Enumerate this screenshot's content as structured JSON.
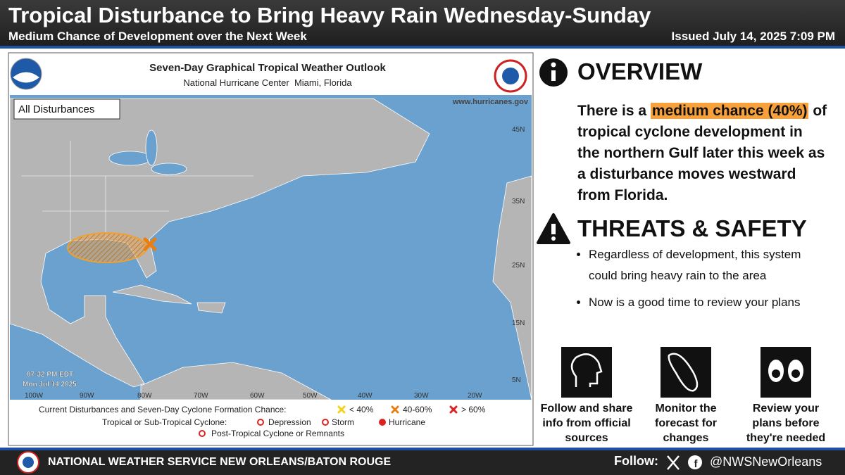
{
  "header": {
    "title": "Tropical Disturbance to Bring Heavy Rain Wednesday-Sunday",
    "subtitle": "Medium Chance of Development over the Next Week",
    "issued": "Issued July 14, 2025 7:09 PM"
  },
  "map": {
    "title": "Seven-Day Graphical Tropical Weather Outlook",
    "subtitle": "National Hurricane Center  Miami, Florida",
    "website": "www.hurricanes.gov",
    "filter": "All Disturbances",
    "timestamp": [
      "07:32 PM EDT",
      "Mon Jul 14 2025"
    ],
    "lat_labels": [
      "45N",
      "35N",
      "25N",
      "15N",
      "5N"
    ],
    "lon_labels": [
      "100W",
      "90W",
      "80W",
      "70W",
      "60W",
      "50W",
      "40W",
      "30W",
      "20W"
    ],
    "legend": {
      "formation_label": "Current Disturbances and Seven-Day Cyclone Formation Chance:",
      "formation": [
        "< 40%",
        "40-60%",
        "> 60%"
      ],
      "cyclone_label": "Tropical or Sub-Tropical Cyclone:",
      "cyclone": [
        "Depression",
        "Storm",
        "Hurricane"
      ],
      "post": "Post-Tropical Cyclone or Remnants"
    }
  },
  "overview": {
    "heading": "OVERVIEW",
    "before": "There is a",
    "highlight": "medium chance (40%)",
    "after": "of tropical cyclone development in the northern Gulf later this week as a disturbance moves westward from Florida."
  },
  "threats": {
    "heading": "THREATS & SAFETY",
    "bullets": [
      "Regardless of development, this system could bring heavy rain to the area",
      "Now is a good time to review your plans"
    ]
  },
  "actions": [
    "Follow and share info from official sources",
    "Monitor the forecast for changes",
    "Review your plans before they're needed"
  ],
  "footer": {
    "office": "NATIONAL WEATHER SERVICE NEW ORLEANS/BATON ROUGE",
    "follow": "Follow:",
    "handle": "@NWSNewOrleans"
  }
}
